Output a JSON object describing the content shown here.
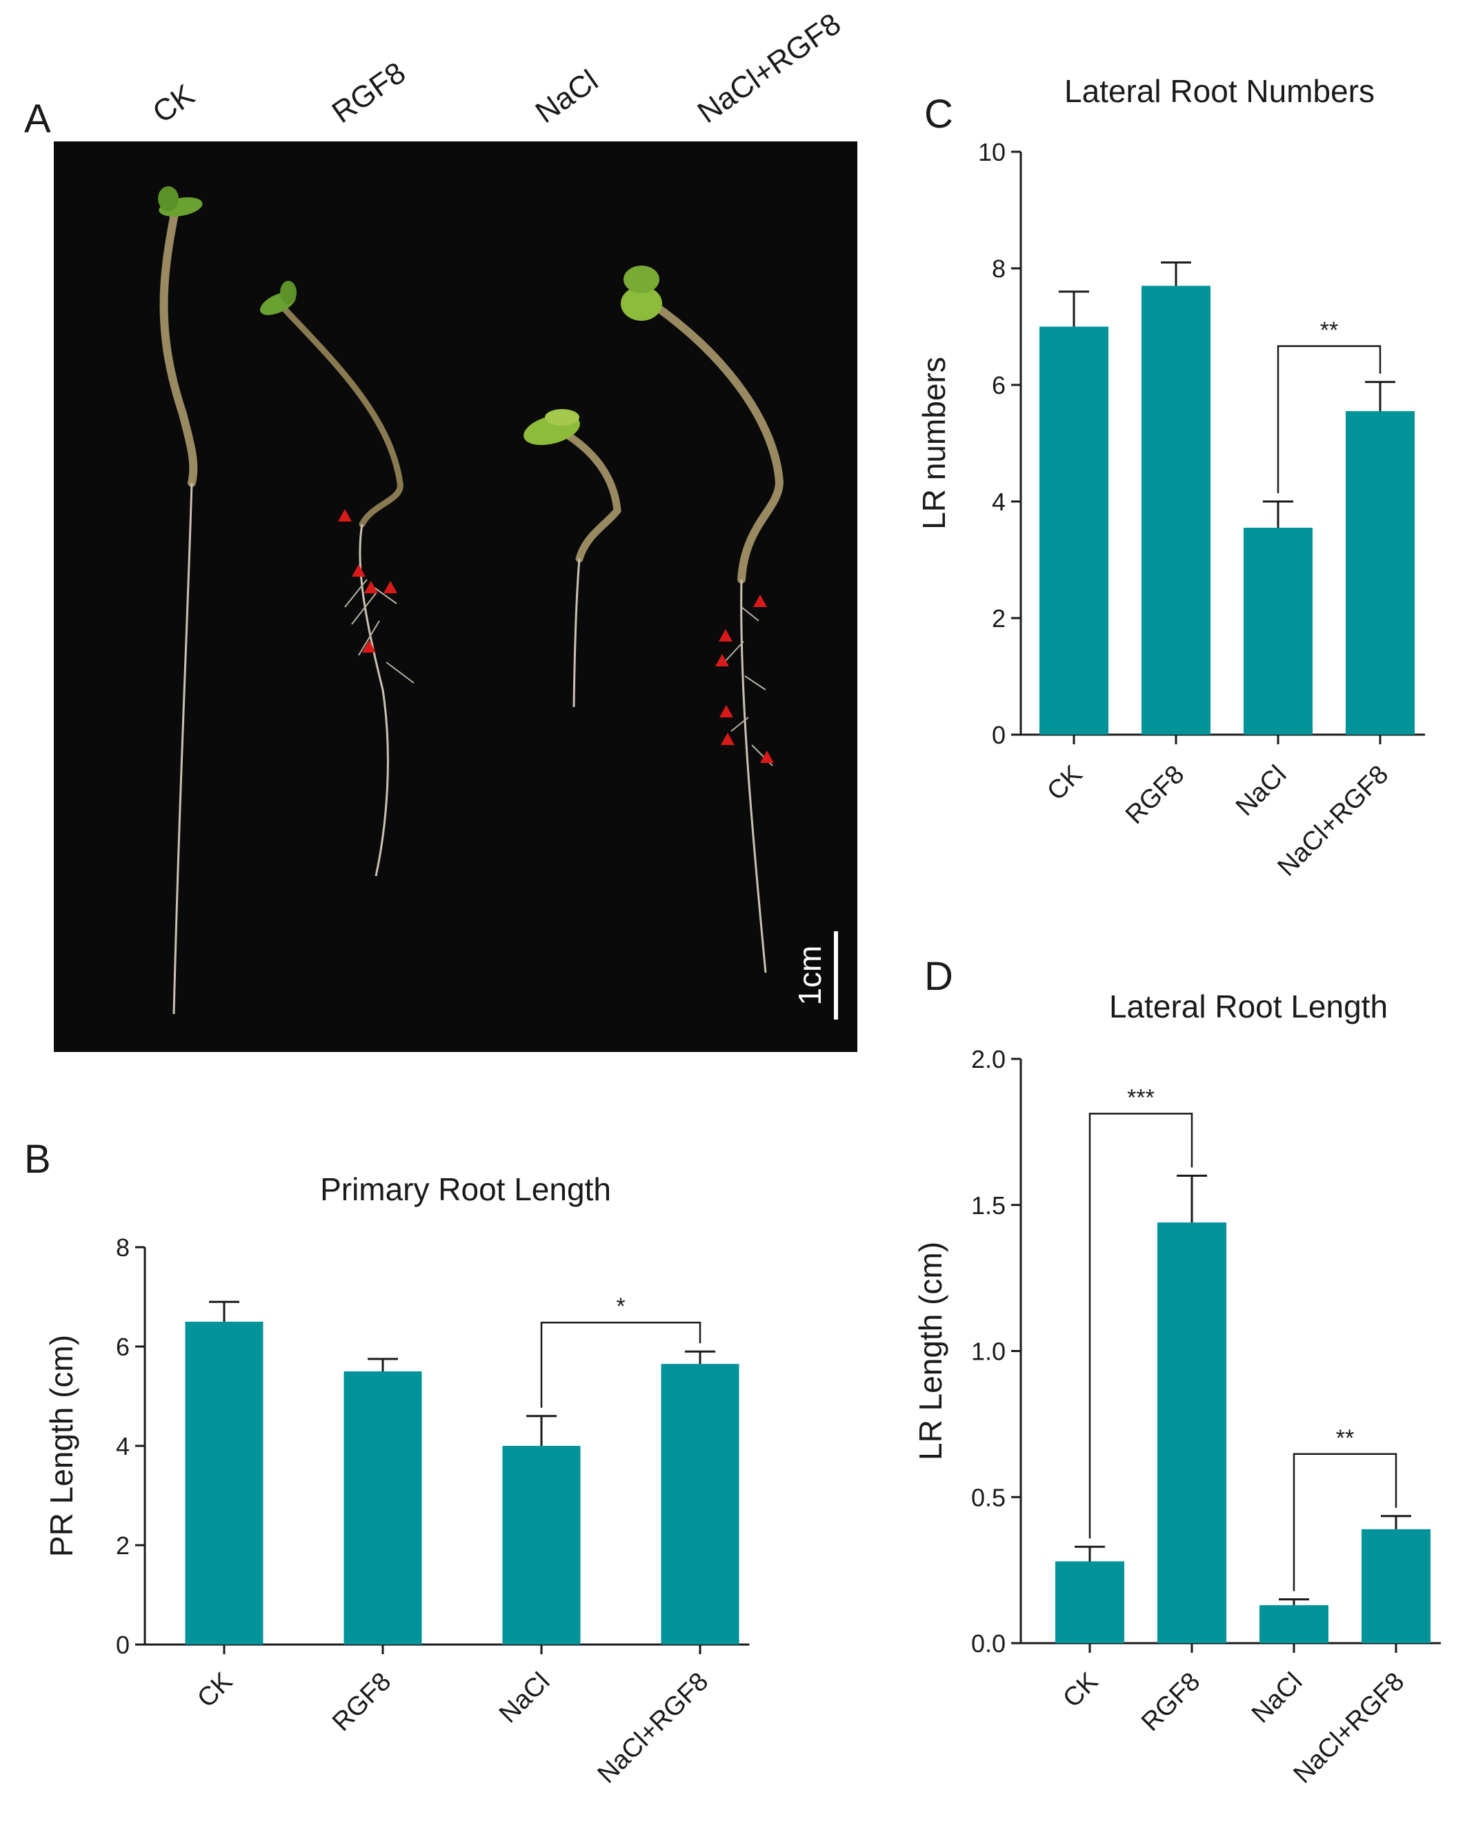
{
  "panel_labels": {
    "a": "A",
    "b": "B",
    "c": "C",
    "d": "D"
  },
  "photo": {
    "column_labels": [
      "CK",
      "RGF8",
      "NaCl",
      "NaCl+RGF8"
    ],
    "scale_bar_label": "1cm",
    "marker_color": "#d91a1a",
    "background_color": "#0a0a0a"
  },
  "colors": {
    "bar": "#00939a",
    "axis": "#1a1a1a"
  },
  "chart_data": [
    {
      "id": "B",
      "type": "bar",
      "title": "Primary Root Length",
      "xlabel": "",
      "ylabel": "PR Length (cm)",
      "categories": [
        "CK",
        "RGF8",
        "NaCl",
        "NaCl+RGF8"
      ],
      "values": [
        6.5,
        5.5,
        4.0,
        5.65
      ],
      "errors": [
        0.4,
        0.25,
        0.6,
        0.25
      ],
      "ylim": [
        0,
        8
      ],
      "yticks": [
        0,
        2,
        4,
        6,
        8
      ],
      "significance": [
        {
          "from": 2,
          "to": 3,
          "label": "*"
        }
      ]
    },
    {
      "id": "C",
      "type": "bar",
      "title": "Lateral Root Numbers",
      "xlabel": "",
      "ylabel": "LR numbers",
      "categories": [
        "CK",
        "RGF8",
        "NaCl",
        "NaCl+RGF8"
      ],
      "values": [
        7.0,
        7.7,
        3.55,
        5.55
      ],
      "errors": [
        0.6,
        0.4,
        0.45,
        0.5
      ],
      "ylim": [
        0,
        10
      ],
      "yticks": [
        0,
        2,
        4,
        6,
        8,
        10
      ],
      "significance": [
        {
          "from": 2,
          "to": 3,
          "label": "**"
        }
      ]
    },
    {
      "id": "D",
      "type": "bar",
      "title": "Lateral Root Length",
      "xlabel": "",
      "ylabel": "LR Length (cm)",
      "categories": [
        "CK",
        "RGF8",
        "NaCl",
        "NaCl+RGF8"
      ],
      "values": [
        0.28,
        1.44,
        0.13,
        0.39
      ],
      "errors": [
        0.05,
        0.16,
        0.02,
        0.045
      ],
      "ylim": [
        0,
        2.0
      ],
      "yticks": [
        0.0,
        0.5,
        1.0,
        1.5,
        2.0
      ],
      "significance": [
        {
          "from": 0,
          "to": 1,
          "label": "***"
        },
        {
          "from": 2,
          "to": 3,
          "label": "**"
        }
      ]
    }
  ]
}
